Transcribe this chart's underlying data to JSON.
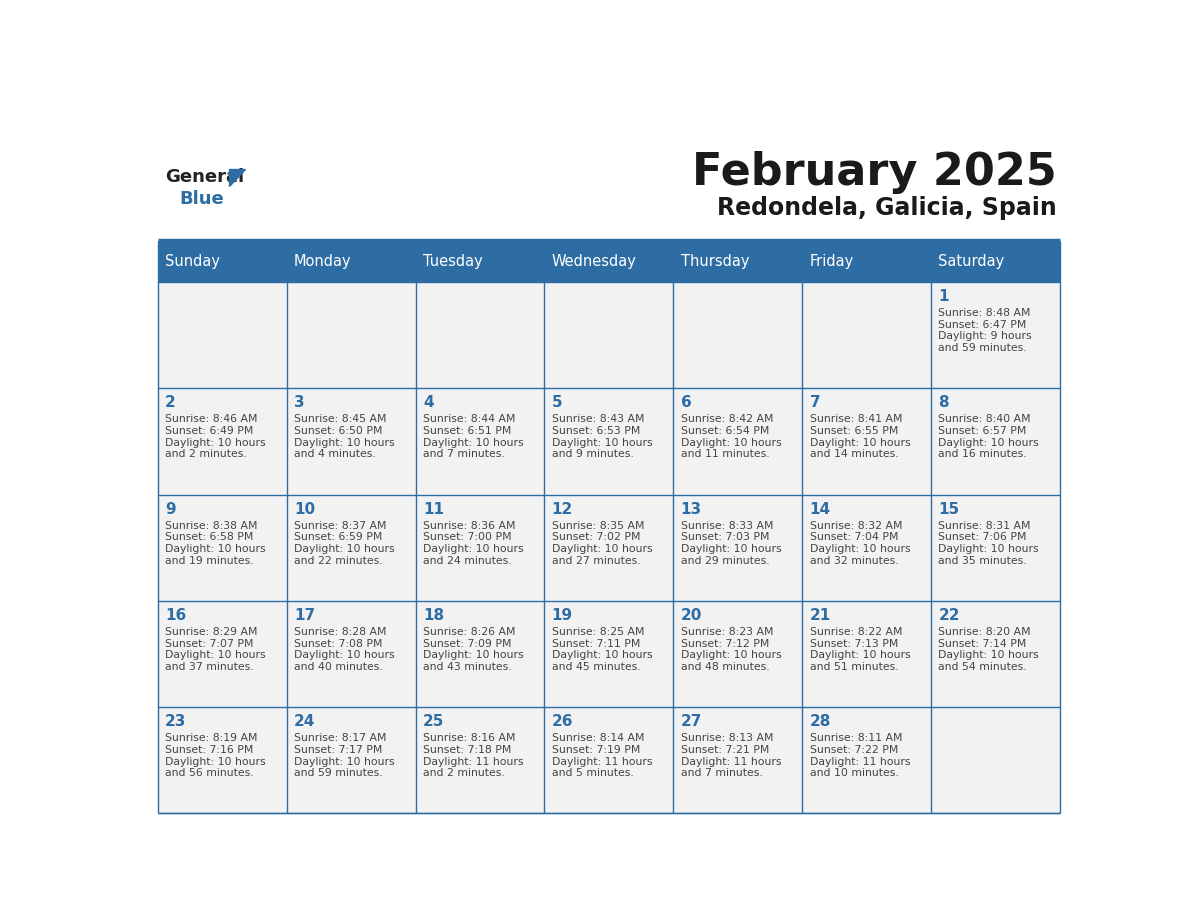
{
  "title": "February 2025",
  "subtitle": "Redondela, Galicia, Spain",
  "header_bg": "#2E6DA4",
  "header_text": "#FFFFFF",
  "cell_bg": "#F2F2F2",
  "border_color": "#2E6DA4",
  "grid_color": "#BBBBBB",
  "title_color": "#1a1a1a",
  "subtitle_color": "#1a1a1a",
  "day_number_color": "#2E6DA4",
  "cell_text_color": "#444444",
  "days_of_week": [
    "Sunday",
    "Monday",
    "Tuesday",
    "Wednesday",
    "Thursday",
    "Friday",
    "Saturday"
  ],
  "calendar_data": [
    [
      null,
      null,
      null,
      null,
      null,
      null,
      {
        "day": 1,
        "sunrise": "8:48 AM",
        "sunset": "6:47 PM",
        "daylight": "9 hours and 59 minutes."
      }
    ],
    [
      {
        "day": 2,
        "sunrise": "8:46 AM",
        "sunset": "6:49 PM",
        "daylight": "10 hours and 2 minutes."
      },
      {
        "day": 3,
        "sunrise": "8:45 AM",
        "sunset": "6:50 PM",
        "daylight": "10 hours and 4 minutes."
      },
      {
        "day": 4,
        "sunrise": "8:44 AM",
        "sunset": "6:51 PM",
        "daylight": "10 hours and 7 minutes."
      },
      {
        "day": 5,
        "sunrise": "8:43 AM",
        "sunset": "6:53 PM",
        "daylight": "10 hours and 9 minutes."
      },
      {
        "day": 6,
        "sunrise": "8:42 AM",
        "sunset": "6:54 PM",
        "daylight": "10 hours and 11 minutes."
      },
      {
        "day": 7,
        "sunrise": "8:41 AM",
        "sunset": "6:55 PM",
        "daylight": "10 hours and 14 minutes."
      },
      {
        "day": 8,
        "sunrise": "8:40 AM",
        "sunset": "6:57 PM",
        "daylight": "10 hours and 16 minutes."
      }
    ],
    [
      {
        "day": 9,
        "sunrise": "8:38 AM",
        "sunset": "6:58 PM",
        "daylight": "10 hours and 19 minutes."
      },
      {
        "day": 10,
        "sunrise": "8:37 AM",
        "sunset": "6:59 PM",
        "daylight": "10 hours and 22 minutes."
      },
      {
        "day": 11,
        "sunrise": "8:36 AM",
        "sunset": "7:00 PM",
        "daylight": "10 hours and 24 minutes."
      },
      {
        "day": 12,
        "sunrise": "8:35 AM",
        "sunset": "7:02 PM",
        "daylight": "10 hours and 27 minutes."
      },
      {
        "day": 13,
        "sunrise": "8:33 AM",
        "sunset": "7:03 PM",
        "daylight": "10 hours and 29 minutes."
      },
      {
        "day": 14,
        "sunrise": "8:32 AM",
        "sunset": "7:04 PM",
        "daylight": "10 hours and 32 minutes."
      },
      {
        "day": 15,
        "sunrise": "8:31 AM",
        "sunset": "7:06 PM",
        "daylight": "10 hours and 35 minutes."
      }
    ],
    [
      {
        "day": 16,
        "sunrise": "8:29 AM",
        "sunset": "7:07 PM",
        "daylight": "10 hours and 37 minutes."
      },
      {
        "day": 17,
        "sunrise": "8:28 AM",
        "sunset": "7:08 PM",
        "daylight": "10 hours and 40 minutes."
      },
      {
        "day": 18,
        "sunrise": "8:26 AM",
        "sunset": "7:09 PM",
        "daylight": "10 hours and 43 minutes."
      },
      {
        "day": 19,
        "sunrise": "8:25 AM",
        "sunset": "7:11 PM",
        "daylight": "10 hours and 45 minutes."
      },
      {
        "day": 20,
        "sunrise": "8:23 AM",
        "sunset": "7:12 PM",
        "daylight": "10 hours and 48 minutes."
      },
      {
        "day": 21,
        "sunrise": "8:22 AM",
        "sunset": "7:13 PM",
        "daylight": "10 hours and 51 minutes."
      },
      {
        "day": 22,
        "sunrise": "8:20 AM",
        "sunset": "7:14 PM",
        "daylight": "10 hours and 54 minutes."
      }
    ],
    [
      {
        "day": 23,
        "sunrise": "8:19 AM",
        "sunset": "7:16 PM",
        "daylight": "10 hours and 56 minutes."
      },
      {
        "day": 24,
        "sunrise": "8:17 AM",
        "sunset": "7:17 PM",
        "daylight": "10 hours and 59 minutes."
      },
      {
        "day": 25,
        "sunrise": "8:16 AM",
        "sunset": "7:18 PM",
        "daylight": "11 hours and 2 minutes."
      },
      {
        "day": 26,
        "sunrise": "8:14 AM",
        "sunset": "7:19 PM",
        "daylight": "11 hours and 5 minutes."
      },
      {
        "day": 27,
        "sunrise": "8:13 AM",
        "sunset": "7:21 PM",
        "daylight": "11 hours and 7 minutes."
      },
      {
        "day": 28,
        "sunrise": "8:11 AM",
        "sunset": "7:22 PM",
        "daylight": "11 hours and 10 minutes."
      },
      null
    ]
  ]
}
